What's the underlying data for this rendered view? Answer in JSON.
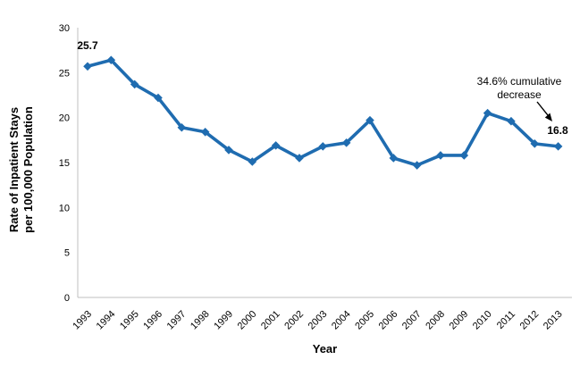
{
  "chart_data": {
    "type": "line",
    "x": [
      1993,
      1994,
      1995,
      1996,
      1997,
      1998,
      1999,
      2000,
      2001,
      2002,
      2003,
      2004,
      2005,
      2006,
      2007,
      2008,
      2009,
      2010,
      2011,
      2012,
      2013
    ],
    "values": [
      25.7,
      26.4,
      23.7,
      22.2,
      18.9,
      18.4,
      16.4,
      15.1,
      16.9,
      15.5,
      16.8,
      17.2,
      19.7,
      15.5,
      14.7,
      15.8,
      15.8,
      20.5,
      19.6,
      17.1,
      16.8
    ],
    "xlabel": "Year",
    "ylabel_lines": [
      "Rate of Inpatient Stays",
      "per 100,000 Population"
    ],
    "ylim": [
      0,
      30
    ],
    "yticks": [
      0,
      5,
      10,
      15,
      20,
      25,
      30
    ],
    "grid": false,
    "legend": "none",
    "annotations": {
      "first_point_label": "25.7",
      "last_point_label": "16.8",
      "callout_line1": "34.6% cumulative",
      "callout_line2": "decrease"
    },
    "colors": {
      "line": "#1F6CB0",
      "axis": "#BFBFBF",
      "text": "#000000"
    }
  }
}
